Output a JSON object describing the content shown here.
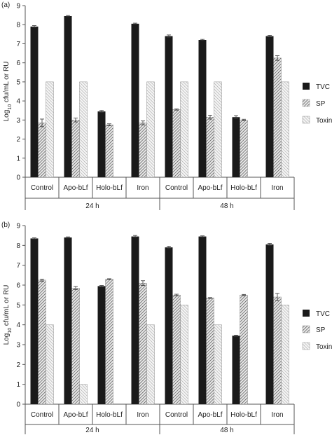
{
  "chart_data": [
    {
      "panel_label": "(a)",
      "type": "bar",
      "ylabel_pre": "Log",
      "ylabel_sub": "10",
      "ylabel_post": " cfu/mL or RU",
      "ylim": [
        0,
        9
      ],
      "yticks": [
        "0",
        "1",
        "2",
        "3",
        "4",
        "5",
        "6",
        "7",
        "8",
        "9"
      ],
      "groups": [
        "24 h",
        "48 h"
      ],
      "categories": [
        "Control",
        "Apo-bLf",
        "Holo-bLf",
        "Iron",
        "Control",
        "Apo-bLf",
        "Holo-bLf",
        "Iron"
      ],
      "series": [
        {
          "name": "TVC",
          "values": [
            7.9,
            8.45,
            3.45,
            8.05,
            7.4,
            7.2,
            3.15,
            7.4
          ],
          "errors": [
            0.05,
            0.03,
            0.05,
            0.03,
            0.06,
            0.03,
            0.08,
            0.04
          ]
        },
        {
          "name": "SP",
          "values": [
            2.85,
            3.0,
            2.75,
            2.85,
            3.55,
            3.15,
            3.0,
            6.25
          ],
          "errors": [
            0.2,
            0.1,
            0.05,
            0.1,
            0.03,
            0.1,
            0.04,
            0.12
          ]
        },
        {
          "name": "Toxin",
          "values": [
            5.0,
            5.0,
            0,
            5.0,
            5.0,
            5.0,
            0,
            5.0
          ],
          "errors": [
            0,
            0,
            0,
            0,
            0,
            0,
            0,
            0
          ]
        }
      ]
    },
    {
      "panel_label": "(b)",
      "type": "bar",
      "ylabel_pre": "Log",
      "ylabel_sub": "10",
      "ylabel_post": " cfu/mL or RU",
      "ylim": [
        0,
        9
      ],
      "yticks": [
        "0",
        "1",
        "2",
        "3",
        "4",
        "5",
        "6",
        "7",
        "8",
        "9"
      ],
      "groups": [
        "24 h",
        "48 h"
      ],
      "categories": [
        "Control",
        "Apo-bLf",
        "Holo-bLf",
        "Iron",
        "Control",
        "Apo-bLf",
        "Holo-bLf",
        "Iron"
      ],
      "series": [
        {
          "name": "TVC",
          "values": [
            8.35,
            8.4,
            5.95,
            8.45,
            7.9,
            8.45,
            3.45,
            8.05
          ],
          "errors": [
            0.03,
            0.03,
            0.03,
            0.05,
            0.06,
            0.03,
            0.03,
            0.05
          ]
        },
        {
          "name": "SP",
          "values": [
            6.25,
            5.85,
            6.3,
            6.1,
            5.5,
            5.35,
            5.5,
            5.4
          ],
          "errors": [
            0.05,
            0.08,
            0.02,
            0.12,
            0.04,
            0.02,
            0.03,
            0.18
          ]
        },
        {
          "name": "Toxin",
          "values": [
            4.0,
            1.0,
            0,
            4.0,
            5.0,
            4.0,
            0,
            5.0
          ],
          "errors": [
            0,
            0,
            0,
            0,
            0,
            0,
            0,
            0
          ]
        }
      ]
    }
  ],
  "legend_position": "right",
  "colors": {
    "TVC": "#1a1a1a",
    "SP_hatch": "#444444",
    "Toxin_hatch": "#8a8a8a",
    "axis": "#555555"
  }
}
